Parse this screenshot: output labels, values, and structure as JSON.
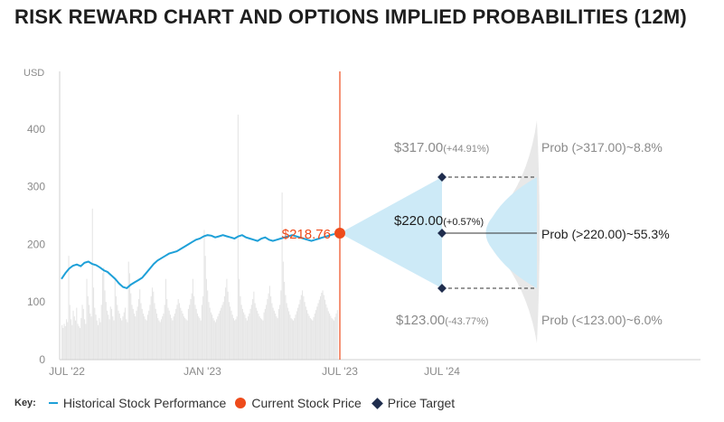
{
  "page": {
    "title": "RISK REWARD CHART AND OPTIONS IMPLIED PROBABILITIES (12M)"
  },
  "legend": {
    "key_label": "Key:",
    "historical": "Historical Stock Performance",
    "current": "Current Stock Price",
    "target": "Price Target"
  },
  "colors": {
    "history_line": "#1ea0d8",
    "current_price": "#ee4b1b",
    "target": "#1f2d4d",
    "volume": "#e6e6e6",
    "cone": "#cdeaf7",
    "distribution": "#e8e8e8"
  },
  "chart_data": {
    "type": "line",
    "ylabel": "USD",
    "ylim": [
      0,
      500
    ],
    "yticks": [
      0,
      100,
      200,
      300,
      400
    ],
    "x_tick_labels": [
      "JUL '22",
      "JAN '23",
      "JUL '23",
      "JUL '24"
    ],
    "grid": false,
    "series": [
      {
        "name": "Historical Stock Performance",
        "values": [
          140,
          150,
          158,
          163,
          165,
          162,
          168,
          170,
          166,
          164,
          160,
          155,
          152,
          146,
          140,
          132,
          126,
          124,
          130,
          134,
          138,
          142,
          150,
          158,
          166,
          172,
          176,
          180,
          184,
          186,
          188,
          192,
          196,
          200,
          204,
          208,
          210,
          214,
          216,
          215,
          212,
          214,
          216,
          214,
          212,
          210,
          214,
          216,
          212,
          210,
          208,
          206,
          210,
          212,
          208,
          206,
          208,
          210,
          212,
          214,
          216,
          214,
          212,
          210,
          208,
          206,
          208,
          210,
          212,
          214,
          216,
          218
        ]
      }
    ],
    "current_price": {
      "value": 218.76,
      "label": "$218.76"
    },
    "targets": [
      {
        "value": 317.0,
        "label": "$317.00",
        "change": "(+44.91%)",
        "prob_label": "Prob (>317.00)~8.8%"
      },
      {
        "value": 220.0,
        "label": "$220.00",
        "change": "(+0.57%)",
        "prob_label": "Prob (>220.00)~55.3%"
      },
      {
        "value": 123.0,
        "label": "$123.00",
        "change": "(-43.77%)",
        "prob_label": "Prob (<123.00)~6.0%"
      }
    ],
    "volume": [
      60,
      55,
      62,
      58,
      70,
      65,
      180,
      95,
      70,
      60,
      85,
      75,
      68,
      90,
      62,
      58,
      55,
      72,
      95,
      88,
      70,
      62,
      140,
      110,
      95,
      80,
      75,
      262,
      125,
      90,
      78,
      68,
      60,
      72,
      65,
      95,
      150,
      160,
      120,
      100,
      85,
      78,
      70,
      92,
      88,
      75,
      68,
      140,
      110,
      95,
      85,
      80,
      72,
      68,
      75,
      82,
      90,
      70,
      65,
      170,
      150,
      115,
      95,
      88,
      80,
      75,
      85,
      92,
      105,
      122,
      98,
      88,
      80,
      75,
      70,
      68,
      78,
      85,
      95,
      110,
      125,
      118,
      98,
      88,
      80,
      72,
      68,
      65,
      70,
      75,
      80,
      95,
      140,
      105,
      90,
      85,
      78,
      72,
      68,
      75,
      80,
      88,
      95,
      105,
      98,
      90,
      85,
      80,
      75,
      72,
      70,
      68,
      88,
      95,
      105,
      115,
      140,
      110,
      95,
      88,
      80,
      75,
      72,
      68,
      95,
      110,
      225,
      180,
      140,
      120,
      100,
      90,
      82,
      78,
      72,
      68,
      65,
      70,
      75,
      80,
      85,
      90,
      95,
      100,
      110,
      125,
      140,
      118,
      100,
      92,
      85,
      78,
      72,
      68,
      70,
      75,
      425,
      140,
      110,
      95,
      88,
      82,
      78,
      72,
      68,
      75,
      80,
      88,
      95,
      105,
      118,
      98,
      90,
      85,
      80,
      75,
      72,
      70,
      68,
      82,
      88,
      95,
      105,
      115,
      128,
      110,
      98,
      90,
      85,
      80,
      75,
      72,
      88,
      95,
      120,
      290,
      170,
      135,
      112,
      98,
      90,
      84,
      78,
      72,
      70,
      68,
      72,
      78,
      84,
      90,
      96,
      104,
      112,
      120,
      110,
      100,
      92,
      86,
      80,
      76,
      72,
      70,
      68,
      74,
      80,
      86,
      92,
      98,
      104,
      110,
      116,
      120,
      112,
      104,
      96,
      90,
      84,
      80,
      76,
      72,
      70,
      68,
      74,
      80,
      86
    ]
  }
}
